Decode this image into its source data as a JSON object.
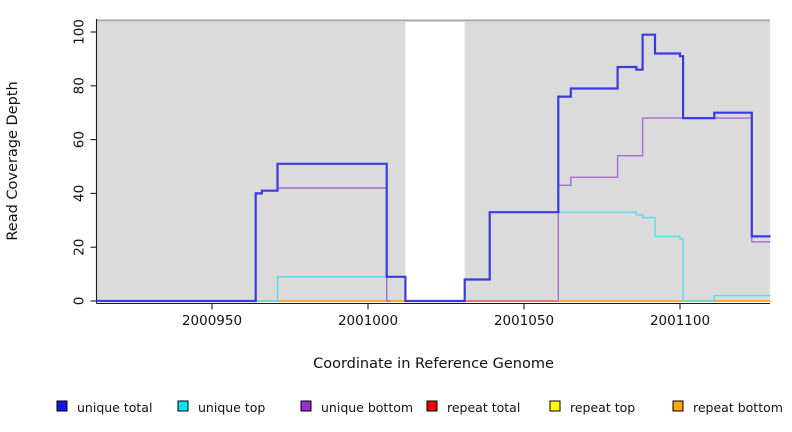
{
  "chart_data": {
    "type": "line",
    "subtype": "step-coverage",
    "title": "",
    "xlabel": "Coordinate in Reference Genome",
    "ylabel": "Read Coverage Depth",
    "xlim": [
      2000913,
      2001129
    ],
    "ylim": [
      0,
      100
    ],
    "x_ticks": [
      2000950,
      2001000,
      2001050,
      2001100
    ],
    "y_ticks": [
      0,
      20,
      40,
      60,
      80,
      100
    ],
    "grid": false,
    "panel_color": "#dbdbdb",
    "panel_border_color": "#a6a6a6",
    "axis_color": "#1a1a1a",
    "gap_region": {
      "from": 2001012,
      "to": 2001031,
      "color": "#ffffff"
    },
    "legend_position": "bottom",
    "series": [
      {
        "name": "repeat top",
        "color": "#f5f500",
        "width": 1.2,
        "steps": [
          [
            2000913,
            0
          ],
          [
            2001012,
            null
          ],
          [
            2001031,
            0
          ]
        ],
        "end": 2001129
      },
      {
        "name": "repeat total",
        "color": "#e83a5e",
        "width": 1.2,
        "steps": [
          [
            2000913,
            0
          ],
          [
            2001012,
            null
          ],
          [
            2001031,
            0
          ]
        ],
        "end": 2001129
      },
      {
        "name": "repeat bottom",
        "color": "#ffa51e",
        "width": 1.5,
        "steps": [
          [
            2000913,
            0
          ],
          [
            2001012,
            null
          ],
          [
            2001061,
            0
          ]
        ],
        "end": 2001129
      },
      {
        "name": "unique bottom",
        "color": "#a86bd4",
        "width": 1.4,
        "steps": [
          [
            2000913,
            0
          ],
          [
            2000964,
            40
          ],
          [
            2000966,
            41
          ],
          [
            2000971,
            42
          ],
          [
            2001006,
            0
          ],
          [
            2001007,
            null
          ],
          [
            2001061,
            0
          ],
          [
            2001061,
            43
          ],
          [
            2001065,
            46
          ],
          [
            2001080,
            54
          ],
          [
            2001088,
            68
          ],
          [
            2001123,
            22
          ]
        ],
        "end": 2001129
      },
      {
        "name": "unique top",
        "color": "#52dfe8",
        "width": 1.4,
        "steps": [
          [
            2000913,
            0
          ],
          [
            2000971,
            9
          ],
          [
            2001012,
            null
          ],
          [
            2001031,
            8
          ],
          [
            2001039,
            33
          ],
          [
            2001086,
            32
          ],
          [
            2001088,
            31
          ],
          [
            2001092,
            24
          ],
          [
            2001100,
            23
          ],
          [
            2001101,
            0
          ],
          [
            2001111,
            2
          ]
        ],
        "end": 2001129
      },
      {
        "name": "unique total",
        "color": "#3a3ae0",
        "width": 2.2,
        "steps": [
          [
            2000913,
            0
          ],
          [
            2000964,
            40
          ],
          [
            2000966,
            41
          ],
          [
            2000971,
            51
          ],
          [
            2001006,
            9
          ],
          [
            2001012,
            0
          ],
          [
            2001031,
            8
          ],
          [
            2001039,
            33
          ],
          [
            2001061,
            76
          ],
          [
            2001065,
            79
          ],
          [
            2001080,
            87
          ],
          [
            2001086,
            86
          ],
          [
            2001088,
            99
          ],
          [
            2001092,
            92
          ],
          [
            2001100,
            91
          ],
          [
            2001101,
            68
          ],
          [
            2001111,
            70
          ],
          [
            2001123,
            24
          ]
        ],
        "end": 2001129
      }
    ],
    "legend": [
      {
        "label": "unique total",
        "color": "#1414ee"
      },
      {
        "label": "unique top",
        "color": "#00e5ee"
      },
      {
        "label": "unique bottom",
        "color": "#9a2cd6"
      },
      {
        "label": "repeat total",
        "color": "#ee0000"
      },
      {
        "label": "repeat top",
        "color": "#ffff00"
      },
      {
        "label": "repeat bottom",
        "color": "#ffa500"
      }
    ]
  }
}
